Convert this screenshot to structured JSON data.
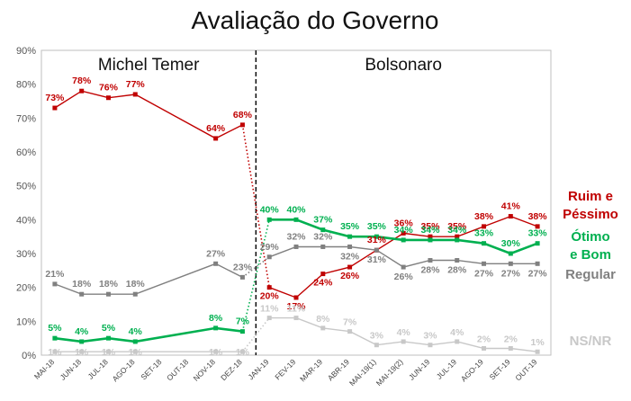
{
  "chart_data": {
    "type": "line",
    "title": "Avaliação do Governo",
    "xlabel": "",
    "ylabel": "",
    "ylim": [
      0,
      90
    ],
    "yticks": [
      0,
      10,
      20,
      30,
      40,
      50,
      60,
      70,
      80,
      90
    ],
    "ytick_labels": [
      "0%",
      "10%",
      "20%",
      "30%",
      "40%",
      "50%",
      "60%",
      "70%",
      "80%",
      "90%"
    ],
    "grid": false,
    "categories": [
      "MAI-18",
      "JUN-18",
      "JUL-18",
      "AGO-18",
      "SET-18",
      "OUT-18",
      "NOV-18",
      "DEZ-18",
      "JAN-19",
      "FEV-19",
      "MAR-19",
      "ABR-19",
      "MAI-19(1)",
      "MAI-19(2)",
      "JUN-19",
      "JUL-19",
      "AGO-19",
      "SET-19",
      "OUT-19"
    ],
    "periods": [
      {
        "label": "Michel Temer",
        "from": 0,
        "to": 7
      },
      {
        "label": "Bolsonaro",
        "from": 8,
        "to": 18
      }
    ],
    "series": [
      {
        "name": "Ruim e Péssimo",
        "color": "#c00000",
        "values": [
          73,
          78,
          76,
          77,
          null,
          null,
          64,
          68,
          20,
          17,
          24,
          26,
          31,
          36,
          35,
          35,
          38,
          41,
          38
        ],
        "labels": [
          "73%",
          "78%",
          "76%",
          "77%",
          null,
          null,
          "64%",
          "68%",
          "20%",
          "17%",
          "24%",
          "26%",
          "31%",
          "36%",
          "35%",
          "35%",
          "38%",
          "41%",
          "38%"
        ]
      },
      {
        "name": "Ótimo e Bom",
        "color": "#00b050",
        "values": [
          5,
          4,
          5,
          4,
          null,
          null,
          8,
          7,
          40,
          40,
          37,
          35,
          35,
          34,
          34,
          34,
          33,
          30,
          33
        ],
        "labels": [
          "5%",
          "4%",
          "5%",
          "4%",
          null,
          null,
          "8%",
          "7%",
          "40%",
          "40%",
          "37%",
          "35%",
          "35%",
          "34%",
          "34%",
          "34%",
          "33%",
          "30%",
          "33%"
        ]
      },
      {
        "name": "Regular",
        "color": "#808080",
        "values": [
          21,
          18,
          18,
          18,
          null,
          null,
          27,
          23,
          29,
          32,
          32,
          32,
          31,
          26,
          28,
          28,
          27,
          27,
          27
        ],
        "labels": [
          "21%",
          "18%",
          "18%",
          "18%",
          null,
          null,
          "27%",
          "23%",
          "29%",
          "32%",
          "32%",
          "32%",
          "31%",
          "26%",
          "28%",
          "28%",
          "27%",
          "27%",
          "27%"
        ]
      },
      {
        "name": "NS/NR",
        "color": "#c8c8c8",
        "values": [
          1,
          1,
          1,
          1,
          null,
          null,
          1,
          1,
          11,
          11,
          8,
          7,
          3,
          4,
          3,
          4,
          2,
          2,
          1
        ],
        "labels": [
          "1%",
          "1%",
          "1%",
          "1%",
          null,
          null,
          "1%",
          "1%",
          "11%",
          "11%",
          "8%",
          "7%",
          "3%",
          "4%",
          "3%",
          "4%",
          "2%",
          "2%",
          "1%"
        ]
      }
    ],
    "side_labels": [
      {
        "series": "Ruim e Péssimo",
        "lines": [
          "Ruim e",
          "Péssimo"
        ]
      },
      {
        "series": "Ótimo e Bom",
        "lines": [
          "Ótimo",
          "e Bom"
        ]
      },
      {
        "series": "Regular",
        "lines": [
          "Regular"
        ]
      },
      {
        "series": "NS/NR",
        "lines": [
          "NS/NR"
        ]
      }
    ]
  }
}
